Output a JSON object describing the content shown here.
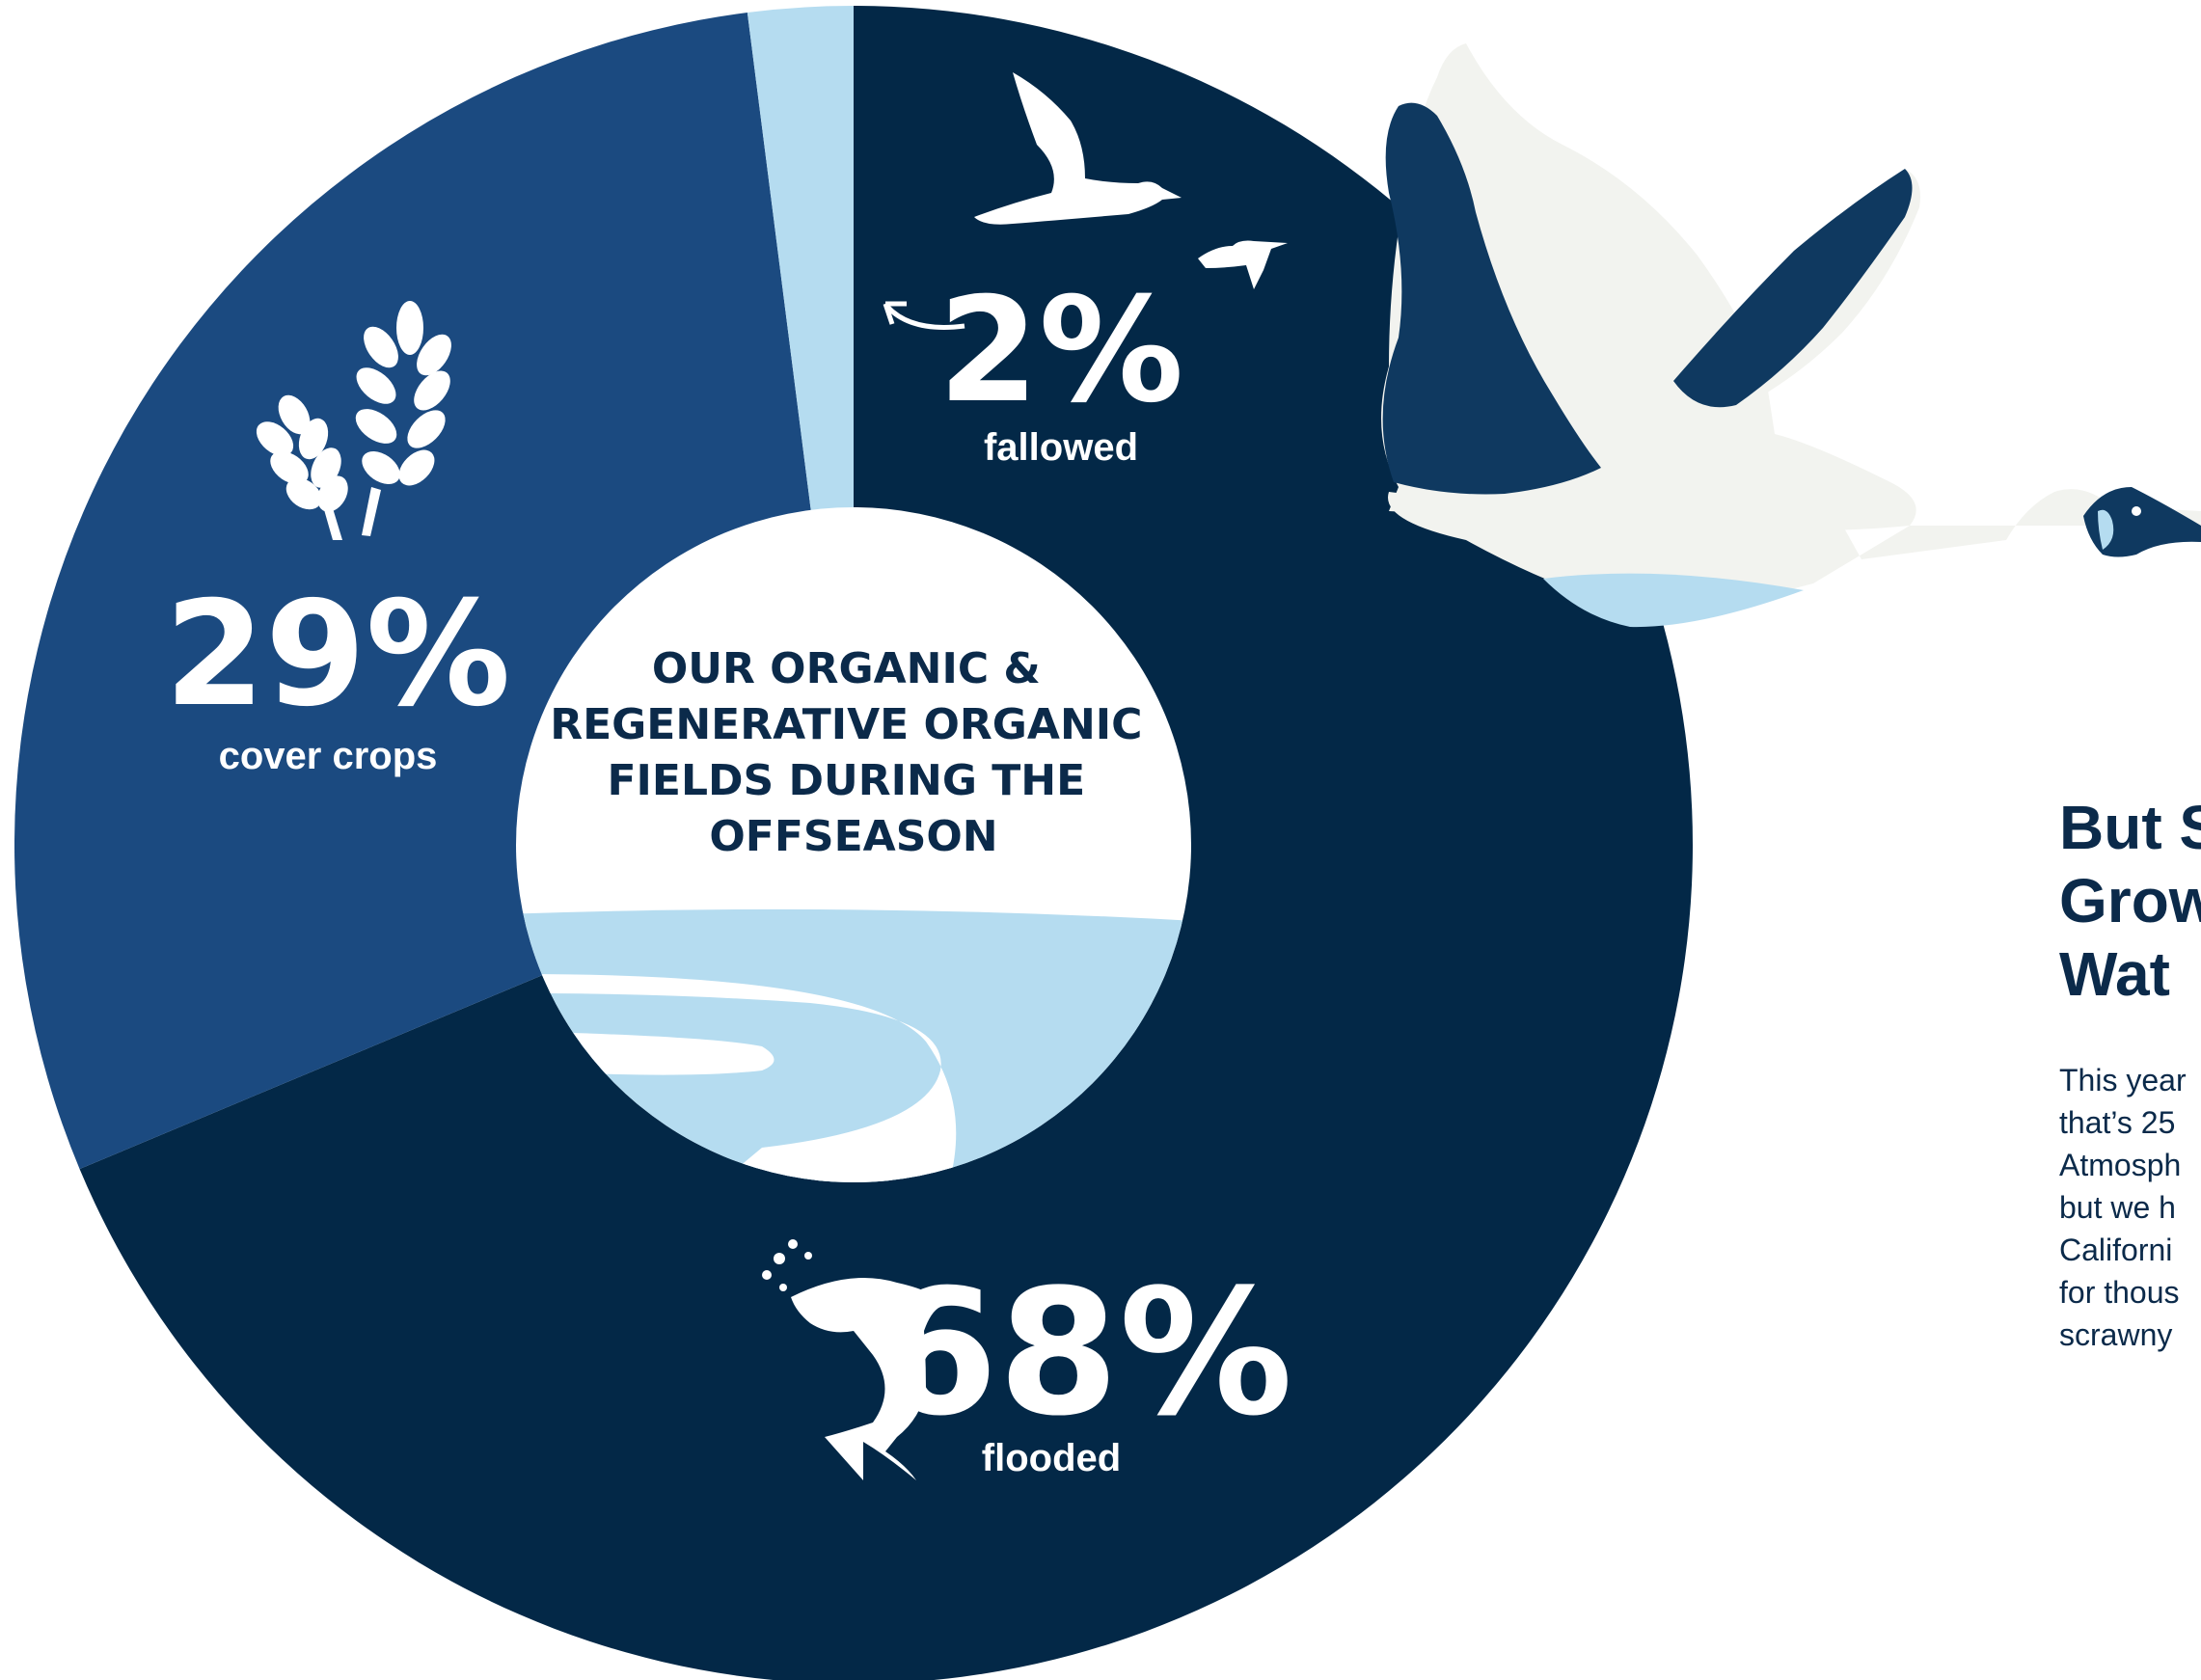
{
  "colors": {
    "flooded": "#032847",
    "cover_crops": "#1b4a80",
    "fallowed": "#b5dcf0",
    "white": "#ffffff",
    "ink": "#0b2a4a",
    "goose_body": "#f2f3ef",
    "goose_dark": "#0f3960"
  },
  "chart_data": {
    "type": "pie",
    "title": "OUR ORGANIC & REGENERATIVE ORGANIC FIELDS DURING THE OFFSEASON",
    "title_lines": [
      "OUR ORGANIC &",
      "REGENERATIVE ORGANIC",
      "FIELDS DURING THE",
      "OFFSEASON"
    ],
    "donut": true,
    "slices": [
      {
        "label": "flooded",
        "value": 68,
        "display": "68%",
        "color": "#032847",
        "icon": "salmon-icon"
      },
      {
        "label": "cover crops",
        "value": 29,
        "display": "29%",
        "color": "#1b4a80",
        "icon": "wheat-icon"
      },
      {
        "label": "fallowed",
        "value": 2,
        "display": "2%",
        "color": "#b5dcf0",
        "icon": "ducks-icon"
      }
    ]
  },
  "side": {
    "heading_lines": [
      "But S",
      "Grow",
      "Wat"
    ],
    "body_lines": [
      "This year",
      "that’s 25",
      "Atmosph",
      "but we h",
      "Californi",
      "for thous",
      "scrawny"
    ]
  }
}
